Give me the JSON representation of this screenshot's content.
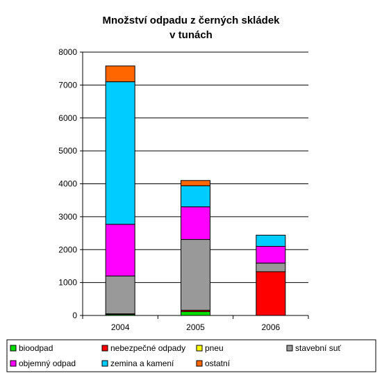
{
  "chart_data": {
    "type": "bar",
    "stacked": true,
    "title_lines": [
      "Množství odpadu z černých skládek",
      "v tunách"
    ],
    "categories": [
      "2004",
      "2005",
      "2006"
    ],
    "ylim": [
      0,
      8000
    ],
    "yticks": [
      0,
      1000,
      2000,
      3000,
      4000,
      5000,
      6000,
      7000,
      8000
    ],
    "grid": true,
    "legend_position": "bottom",
    "series": [
      {
        "name": "bioodpad",
        "color": "#00dd00",
        "values": [
          30,
          120,
          0
        ]
      },
      {
        "name": "nebezpečné odpady",
        "color": "#ff0000",
        "values": [
          20,
          40,
          1330
        ]
      },
      {
        "name": "pneu",
        "color": "#ffff00",
        "values": [
          0,
          0,
          0
        ]
      },
      {
        "name": "stavební suť",
        "color": "#999999",
        "values": [
          1150,
          2150,
          260
        ]
      },
      {
        "name": "objemný odpad",
        "color": "#ff00ff",
        "values": [
          1570,
          990,
          510
        ]
      },
      {
        "name": "zemina a kamení",
        "color": "#00ccff",
        "values": [
          4330,
          640,
          340
        ]
      },
      {
        "name": "ostatní",
        "color": "#ff6600",
        "values": [
          480,
          160,
          0
        ]
      }
    ]
  }
}
